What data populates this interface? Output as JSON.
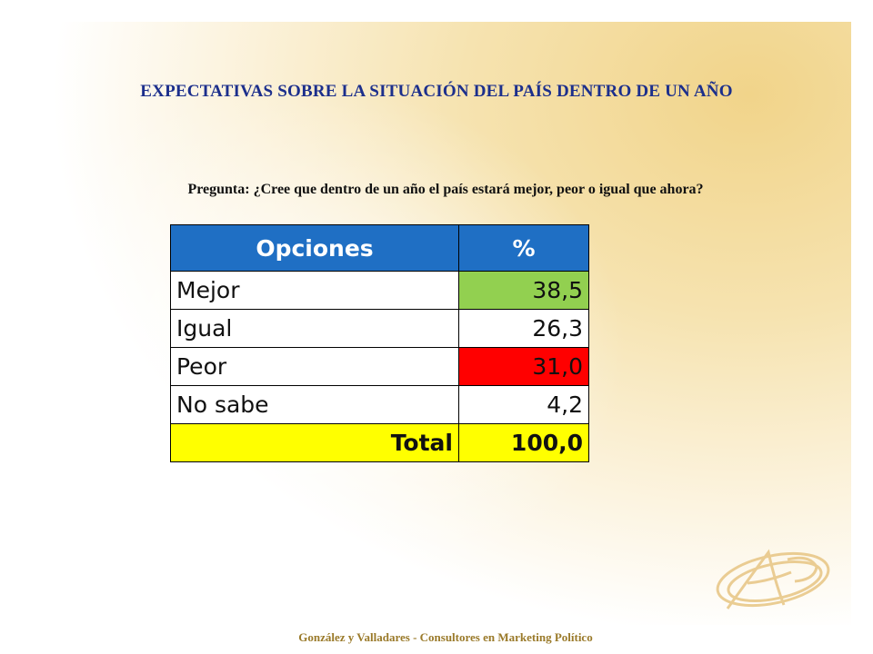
{
  "title": "EXPECTATIVAS  SOBRE LA SITUACIÓN  DEL PAÍS DENTRO DE UN AÑO",
  "question": "Pregunta: ¿Cree que dentro  de un año el país estará mejor,  peor o igual que ahora?",
  "table": {
    "headers": {
      "options": "Opciones",
      "percent": "%"
    },
    "rows": [
      {
        "option": "Mejor",
        "value": "38,5",
        "highlight": "#92d050"
      },
      {
        "option": "Igual",
        "value": "26,3",
        "highlight": ""
      },
      {
        "option": "Peor",
        "value": "31,0",
        "highlight": "#ff0000"
      },
      {
        "option": "No sabe",
        "value": "4,2",
        "highlight": ""
      }
    ],
    "total": {
      "label": "Total",
      "value": "100,0"
    }
  },
  "footer": "González y Valladares - Consultores en Marketing Político",
  "colors": {
    "header_bg": "#1f6fc4",
    "title_text": "#1c2f8c",
    "total_bg": "#ffff00",
    "footer_text": "#9a7a2a"
  }
}
